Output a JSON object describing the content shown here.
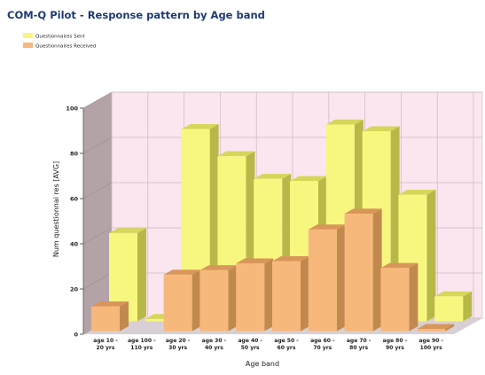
{
  "colors": {
    "sent_front": "#f7f77f",
    "sent_top": "#d6d65a",
    "sent_side": "#b8b848",
    "received_front": "#f7b87c",
    "received_top": "#d9965a",
    "received_side": "#c2894e",
    "back_wall": "#f9e6ee",
    "side_wall": "#b4a3a6",
    "floor": "#d8d0d4",
    "title": "#1f3a73"
  },
  "chart_data": {
    "type": "bar",
    "title": "COM-Q Pilot - Response pattern by Age band",
    "xlabel": "Age band",
    "ylabel": "Num questionnai res [AVG]",
    "ylim": [
      0,
      100
    ],
    "yticks": [
      "0",
      "20",
      "40",
      "60",
      "80",
      "100"
    ],
    "categories": [
      [
        "age 10 -",
        "20 yrs"
      ],
      [
        "age 100 -",
        "110 yrs"
      ],
      [
        "age 20 -",
        "30 yrs"
      ],
      [
        "age 30 -",
        "40 yrs"
      ],
      [
        "age 40 -",
        "50 yrs"
      ],
      [
        "age 50 -",
        "60 yrs"
      ],
      [
        "age 60 -",
        "70 yrs"
      ],
      [
        "age 70 -",
        "80 yrs"
      ],
      [
        "age 80 -",
        "90 yrs"
      ],
      [
        "age 90 -",
        "100 yrs"
      ]
    ],
    "series": [
      {
        "name": "Questionnaires Sent",
        "values": [
          39,
          1,
          85,
          73,
          63,
          62,
          87,
          84,
          56,
          11
        ]
      },
      {
        "name": "Questionnaires Received",
        "values": [
          11,
          0,
          25,
          27,
          30,
          31,
          45,
          52,
          28,
          1
        ]
      }
    ],
    "legend_position": "top-left",
    "grid": true
  }
}
